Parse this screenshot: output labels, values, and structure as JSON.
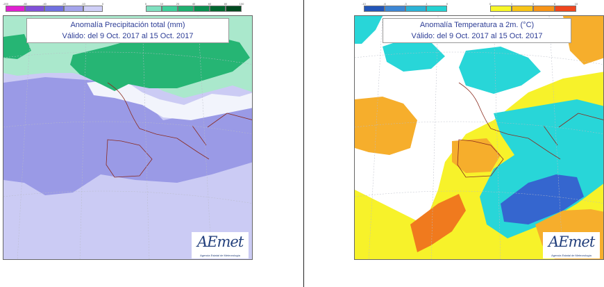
{
  "precipitation_map": {
    "title_line1": "Anomalía Precipitación total (mm)",
    "title_line2": "Válido: del 9 Oct. 2017 al 15 Oct. 2017",
    "legend_negative": {
      "ticks": [
        "-200",
        "-80",
        "-40",
        "-20",
        "-10",
        "0"
      ],
      "colors": [
        "#e020d0",
        "#8050d8",
        "#7070e0",
        "#a4a4ec",
        "#cfcff7"
      ]
    },
    "legend_positive": {
      "ticks": [
        "0",
        "10",
        "20",
        "40",
        "60",
        "80",
        "100"
      ],
      "colors": [
        "#7fe0c0",
        "#3fcf9a",
        "#20b070",
        "#0a9050",
        "#006830",
        "#004a20"
      ]
    },
    "palette": {
      "strong_deficit": "#9a9ae6",
      "mild_deficit": "#cbcbf4",
      "near_normal": "#f2f4fc",
      "light_wet": "#aae8cc",
      "wet": "#26b574"
    },
    "logo": {
      "name": "AEmet",
      "subtitle": "Agencia Estatal de Meteorología"
    }
  },
  "temperature_map": {
    "title_line1": "Anomalía Temperatura a 2m. (°C)",
    "title_line2": "Válido: del 9 Oct. 2017 al 15 Oct. 2017",
    "legend_negative": {
      "ticks": [
        "-10",
        "-6",
        "-3",
        "-1",
        "0"
      ],
      "colors": [
        "#2255b8",
        "#3d86d4",
        "#2bb3d6",
        "#24d2d2"
      ]
    },
    "legend_positive": {
      "ticks": [
        "0",
        "1",
        "3",
        "6",
        "10"
      ],
      "colors": [
        "#f7f728",
        "#f7c418",
        "#f79418",
        "#f0461e"
      ]
    },
    "palette": {
      "cold_strong": "#3566cf",
      "cold": "#28d6d8",
      "neutral": "#ffffff",
      "warm": "#f7f22a",
      "warmer": "#f6ae2c",
      "hot": "#f07a1e"
    },
    "logo": {
      "name": "AEmet",
      "subtitle": "Agencia Estatal de Meteorología"
    }
  }
}
